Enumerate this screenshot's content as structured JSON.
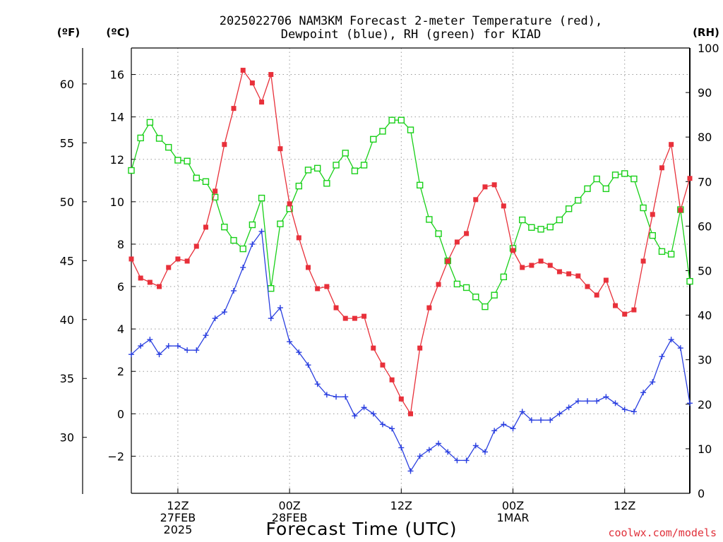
{
  "chart_data": {
    "type": "line",
    "title_lines": [
      "2025022706 NAM3KM Forecast 2-meter Temperature (red),",
      "Dewpoint (blue), RH (green) for KIAD"
    ],
    "xlabel": "Forecast Time (UTC)",
    "credit": "coolwx.com/models",
    "units": {
      "left_f": "(ºF)",
      "left_c": "(ºC)",
      "right": "(RH)"
    },
    "x_axis": {
      "range_hours": [
        1,
        61
      ],
      "ticks": [
        {
          "hour": 6,
          "lines": [
            "12Z",
            "27FEB",
            "2025"
          ]
        },
        {
          "hour": 18,
          "lines": [
            "00Z",
            "28FEB"
          ]
        },
        {
          "hour": 30,
          "lines": [
            "12Z"
          ]
        },
        {
          "hour": 42,
          "lines": [
            "00Z",
            "1MAR"
          ]
        },
        {
          "hour": 54,
          "lines": [
            "12Z"
          ]
        }
      ]
    },
    "y_celsius": {
      "range": [
        -3.75,
        17.25
      ],
      "ticks": [
        -2,
        0,
        2,
        4,
        6,
        8,
        10,
        12,
        14,
        16
      ]
    },
    "y_fahrenheit": {
      "ticks": [
        30,
        35,
        40,
        45,
        50,
        55,
        60
      ]
    },
    "y_rh": {
      "range": [
        0,
        100
      ],
      "ticks": [
        0,
        10,
        20,
        30,
        40,
        50,
        60,
        70,
        80,
        90,
        100
      ]
    },
    "colors": {
      "temperature": "#e8303a",
      "dewpoint": "#2a3fe0",
      "rh": "#18d018"
    },
    "series": [
      {
        "name": "2-meter Temperature",
        "key": "temperature",
        "unit": "degC",
        "marker": "filled-square",
        "values": [
          7.3,
          6.4,
          6.2,
          6.0,
          6.9,
          7.3,
          7.2,
          7.9,
          8.8,
          10.5,
          12.7,
          14.4,
          16.2,
          15.6,
          14.7,
          16.0,
          12.5,
          9.9,
          8.3,
          6.9,
          5.9,
          6.0,
          5.0,
          4.5,
          4.5,
          4.6,
          3.1,
          2.3,
          1.6,
          0.7,
          0.0,
          3.1,
          5.0,
          6.1,
          7.2,
          8.1,
          8.5,
          10.1,
          10.7,
          10.8,
          9.8,
          7.7,
          6.9,
          7.0,
          7.2,
          7.0,
          6.7,
          6.6,
          6.5,
          6.0,
          5.6,
          6.3,
          5.1,
          4.7,
          4.9,
          7.2,
          9.4,
          11.6,
          12.7,
          9.6,
          11.1
        ]
      },
      {
        "name": "Dewpoint",
        "key": "dewpoint",
        "unit": "degC",
        "marker": "plus",
        "values": [
          2.8,
          3.2,
          3.5,
          2.8,
          3.2,
          3.2,
          3.0,
          3.0,
          3.7,
          4.5,
          4.8,
          5.8,
          6.9,
          8.0,
          8.6,
          4.5,
          5.0,
          3.4,
          2.9,
          2.3,
          1.4,
          0.9,
          0.8,
          0.8,
          -0.1,
          0.3,
          0.0,
          -0.5,
          -0.7,
          -1.6,
          -2.7,
          -2.0,
          -1.7,
          -1.4,
          -1.8,
          -2.2,
          -2.2,
          -1.5,
          -1.8,
          -0.8,
          -0.5,
          -0.7,
          0.1,
          -0.3,
          -0.3,
          -0.3,
          0.0,
          0.3,
          0.6,
          0.6,
          0.6,
          0.8,
          0.5,
          0.2,
          0.1,
          1.0,
          1.5,
          2.7,
          3.5,
          3.1,
          0.5
        ]
      },
      {
        "name": "RH",
        "key": "rh",
        "unit": "percent",
        "marker": "open-square",
        "values": [
          72.5,
          79.8,
          83.3,
          79.7,
          77.7,
          74.8,
          74.6,
          70.8,
          70.0,
          66.5,
          59.8,
          56.8,
          54.9,
          60.3,
          66.3,
          46.0,
          60.5,
          63.9,
          69.0,
          72.6,
          73.0,
          69.6,
          73.7,
          76.4,
          72.4,
          73.7,
          79.5,
          81.3,
          83.8,
          83.8,
          81.6,
          69.2,
          61.5,
          58.3,
          52.2,
          47.0,
          46.2,
          44.1,
          41.9,
          44.5,
          48.6,
          55.0,
          61.4,
          59.7,
          59.3,
          59.8,
          61.4,
          63.9,
          65.8,
          68.4,
          70.6,
          68.4,
          71.5,
          71.8,
          70.6,
          64.1,
          57.9,
          54.3,
          53.7,
          63.7,
          47.6
        ]
      }
    ]
  }
}
